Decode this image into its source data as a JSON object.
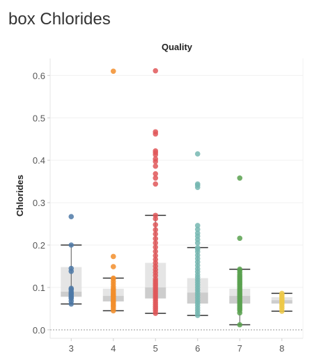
{
  "title": "box Chlorides",
  "chart_data": {
    "type": "box",
    "column_header": "Quality",
    "ylabel": "Chlorides",
    "categories": [
      "3",
      "4",
      "5",
      "6",
      "7",
      "8"
    ],
    "ylim": [
      -0.02,
      0.64
    ],
    "yticks": [
      0.0,
      0.1,
      0.2,
      0.3,
      0.4,
      0.5,
      0.6
    ],
    "grid": true,
    "series": [
      {
        "category": "3",
        "color": "#4e79a7",
        "min": 0.061,
        "q1": 0.078,
        "median": 0.09,
        "q3": 0.148,
        "max": 0.2,
        "points": [
          0.061,
          0.068,
          0.074,
          0.077,
          0.08,
          0.084,
          0.086,
          0.09,
          0.095,
          0.098,
          0.138,
          0.145,
          0.2,
          0.267
        ]
      },
      {
        "category": "4",
        "color": "#f28e2b",
        "min": 0.045,
        "q1": 0.067,
        "median": 0.08,
        "q3": 0.097,
        "max": 0.122,
        "points": [
          0.045,
          0.05,
          0.055,
          0.058,
          0.062,
          0.066,
          0.068,
          0.071,
          0.074,
          0.078,
          0.08,
          0.083,
          0.086,
          0.09,
          0.094,
          0.097,
          0.102,
          0.108,
          0.114,
          0.12,
          0.122,
          0.149,
          0.173,
          0.61
        ]
      },
      {
        "category": "5",
        "color": "#e15759",
        "min": 0.039,
        "q1": 0.074,
        "median": 0.1,
        "q3": 0.158,
        "max": 0.27,
        "points": [
          0.039,
          0.045,
          0.05,
          0.055,
          0.06,
          0.065,
          0.07,
          0.075,
          0.08,
          0.085,
          0.09,
          0.095,
          0.1,
          0.105,
          0.11,
          0.115,
          0.12,
          0.128,
          0.135,
          0.142,
          0.15,
          0.158,
          0.166,
          0.175,
          0.185,
          0.195,
          0.205,
          0.215,
          0.226,
          0.236,
          0.248,
          0.262,
          0.27,
          0.344,
          0.358,
          0.368,
          0.386,
          0.397,
          0.403,
          0.413,
          0.418,
          0.422,
          0.462,
          0.467,
          0.611
        ]
      },
      {
        "category": "6",
        "color": "#76b7b2",
        "min": 0.034,
        "q1": 0.062,
        "median": 0.088,
        "q3": 0.122,
        "max": 0.194,
        "points": [
          0.034,
          0.04,
          0.046,
          0.052,
          0.058,
          0.064,
          0.07,
          0.076,
          0.082,
          0.088,
          0.094,
          0.1,
          0.106,
          0.112,
          0.118,
          0.124,
          0.13,
          0.137,
          0.144,
          0.152,
          0.16,
          0.168,
          0.176,
          0.184,
          0.19,
          0.194,
          0.205,
          0.213,
          0.221,
          0.228,
          0.237,
          0.246,
          0.336,
          0.341,
          0.344,
          0.415
        ]
      },
      {
        "category": "7",
        "color": "#59a14f",
        "min": 0.012,
        "q1": 0.062,
        "median": 0.08,
        "q3": 0.097,
        "max": 0.143,
        "points": [
          0.012,
          0.04,
          0.046,
          0.05,
          0.054,
          0.058,
          0.062,
          0.066,
          0.07,
          0.074,
          0.078,
          0.082,
          0.086,
          0.09,
          0.094,
          0.098,
          0.102,
          0.106,
          0.11,
          0.114,
          0.118,
          0.122,
          0.126,
          0.13,
          0.135,
          0.14,
          0.143,
          0.216,
          0.358
        ]
      },
      {
        "category": "8",
        "color": "#edc948",
        "min": 0.044,
        "q1": 0.062,
        "median": 0.07,
        "q3": 0.077,
        "max": 0.086,
        "points": [
          0.044,
          0.05,
          0.055,
          0.06,
          0.064,
          0.068,
          0.071,
          0.074,
          0.078,
          0.082,
          0.086
        ]
      }
    ]
  }
}
